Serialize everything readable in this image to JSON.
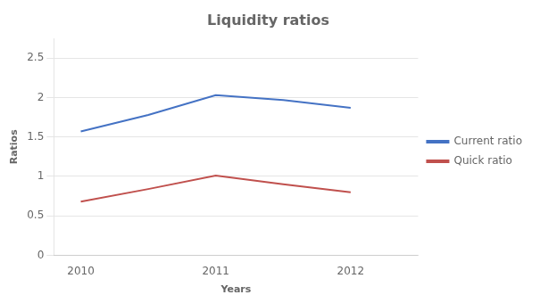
{
  "chart_data": {
    "type": "line",
    "title": "Liquidity ratios",
    "xlabel": "Years",
    "ylabel": "Ratios",
    "x": [
      2010,
      2010.5,
      2011,
      2011.5,
      2012
    ],
    "series": [
      {
        "name": "Current ratio",
        "color": "#4472C4",
        "values": [
          1.57,
          1.78,
          2.03,
          1.97,
          1.87
        ]
      },
      {
        "name": "Quick ratio",
        "color": "#C0504D",
        "values": [
          0.68,
          0.84,
          1.01,
          0.9,
          0.8
        ]
      }
    ],
    "xlim": [
      2009.8,
      2012.5
    ],
    "xticks": [
      2010,
      2011,
      2012
    ],
    "ylim": [
      0,
      2.75
    ],
    "yticks": [
      0,
      0.5,
      1.0,
      1.5,
      2.0,
      2.5
    ],
    "grid": "y",
    "legend": "right"
  }
}
